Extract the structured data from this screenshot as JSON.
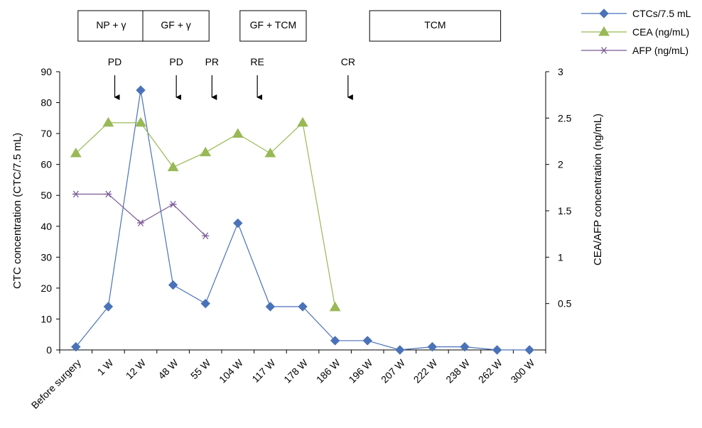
{
  "chart_data": {
    "type": "line",
    "categories": [
      "Before surgery",
      "1 W",
      "12 W",
      "48 W",
      "55 W",
      "104 W",
      "117 W",
      "178 W",
      "186 W",
      "196 W",
      "207 W",
      "222 W",
      "238 W",
      "262 W",
      "300 W"
    ],
    "ylabel_left": "CTC concentration (CTC/7.5 mL)",
    "ylabel_right": "CEA/AFP concentration (ng/mL)",
    "ylim_left": [
      0,
      90
    ],
    "ylim_right": [
      0,
      3
    ],
    "yticks_left": [
      0,
      10,
      20,
      30,
      40,
      50,
      60,
      70,
      80,
      90
    ],
    "yticks_right": [
      0.5,
      1,
      1.5,
      2,
      2.5,
      3
    ],
    "grid": false,
    "legend_position": "top-right",
    "series": [
      {
        "name": "CTCs/7.5 mL",
        "axis": "left",
        "color": "#4a72b8",
        "marker": "diamond",
        "values": [
          1,
          14,
          84,
          21,
          15,
          41,
          14,
          14,
          3,
          3,
          0,
          1,
          1,
          0,
          0
        ]
      },
      {
        "name": "CEA (ng/mL)",
        "axis": "right",
        "color": "#98b955",
        "marker": "triangle",
        "values": [
          2.12,
          2.45,
          2.45,
          1.97,
          2.13,
          2.33,
          2.12,
          2.45,
          0.46,
          null,
          null,
          null,
          null,
          null,
          null
        ]
      },
      {
        "name": "AFP (ng/mL)",
        "axis": "right",
        "color": "#7b5b96",
        "marker": "star",
        "values": [
          1.68,
          1.68,
          1.37,
          1.57,
          1.23,
          null,
          null,
          null,
          null,
          null,
          null,
          null,
          null,
          null,
          null
        ]
      }
    ],
    "treatments": [
      {
        "label": "NP + γ",
        "start": 0,
        "end": 2
      },
      {
        "label": "GF + γ",
        "start": 2,
        "end": 4
      },
      {
        "label": "GF + TCM",
        "start": 5,
        "end": 7
      },
      {
        "label": "TCM",
        "start": 9,
        "end": 13
      }
    ],
    "responses": [
      {
        "label": "PD",
        "x": 1.2
      },
      {
        "label": "PD",
        "x": 3.1
      },
      {
        "label": "PR",
        "x": 4.2
      },
      {
        "label": "RE",
        "x": 5.6
      },
      {
        "label": "CR",
        "x": 8.4
      }
    ]
  }
}
